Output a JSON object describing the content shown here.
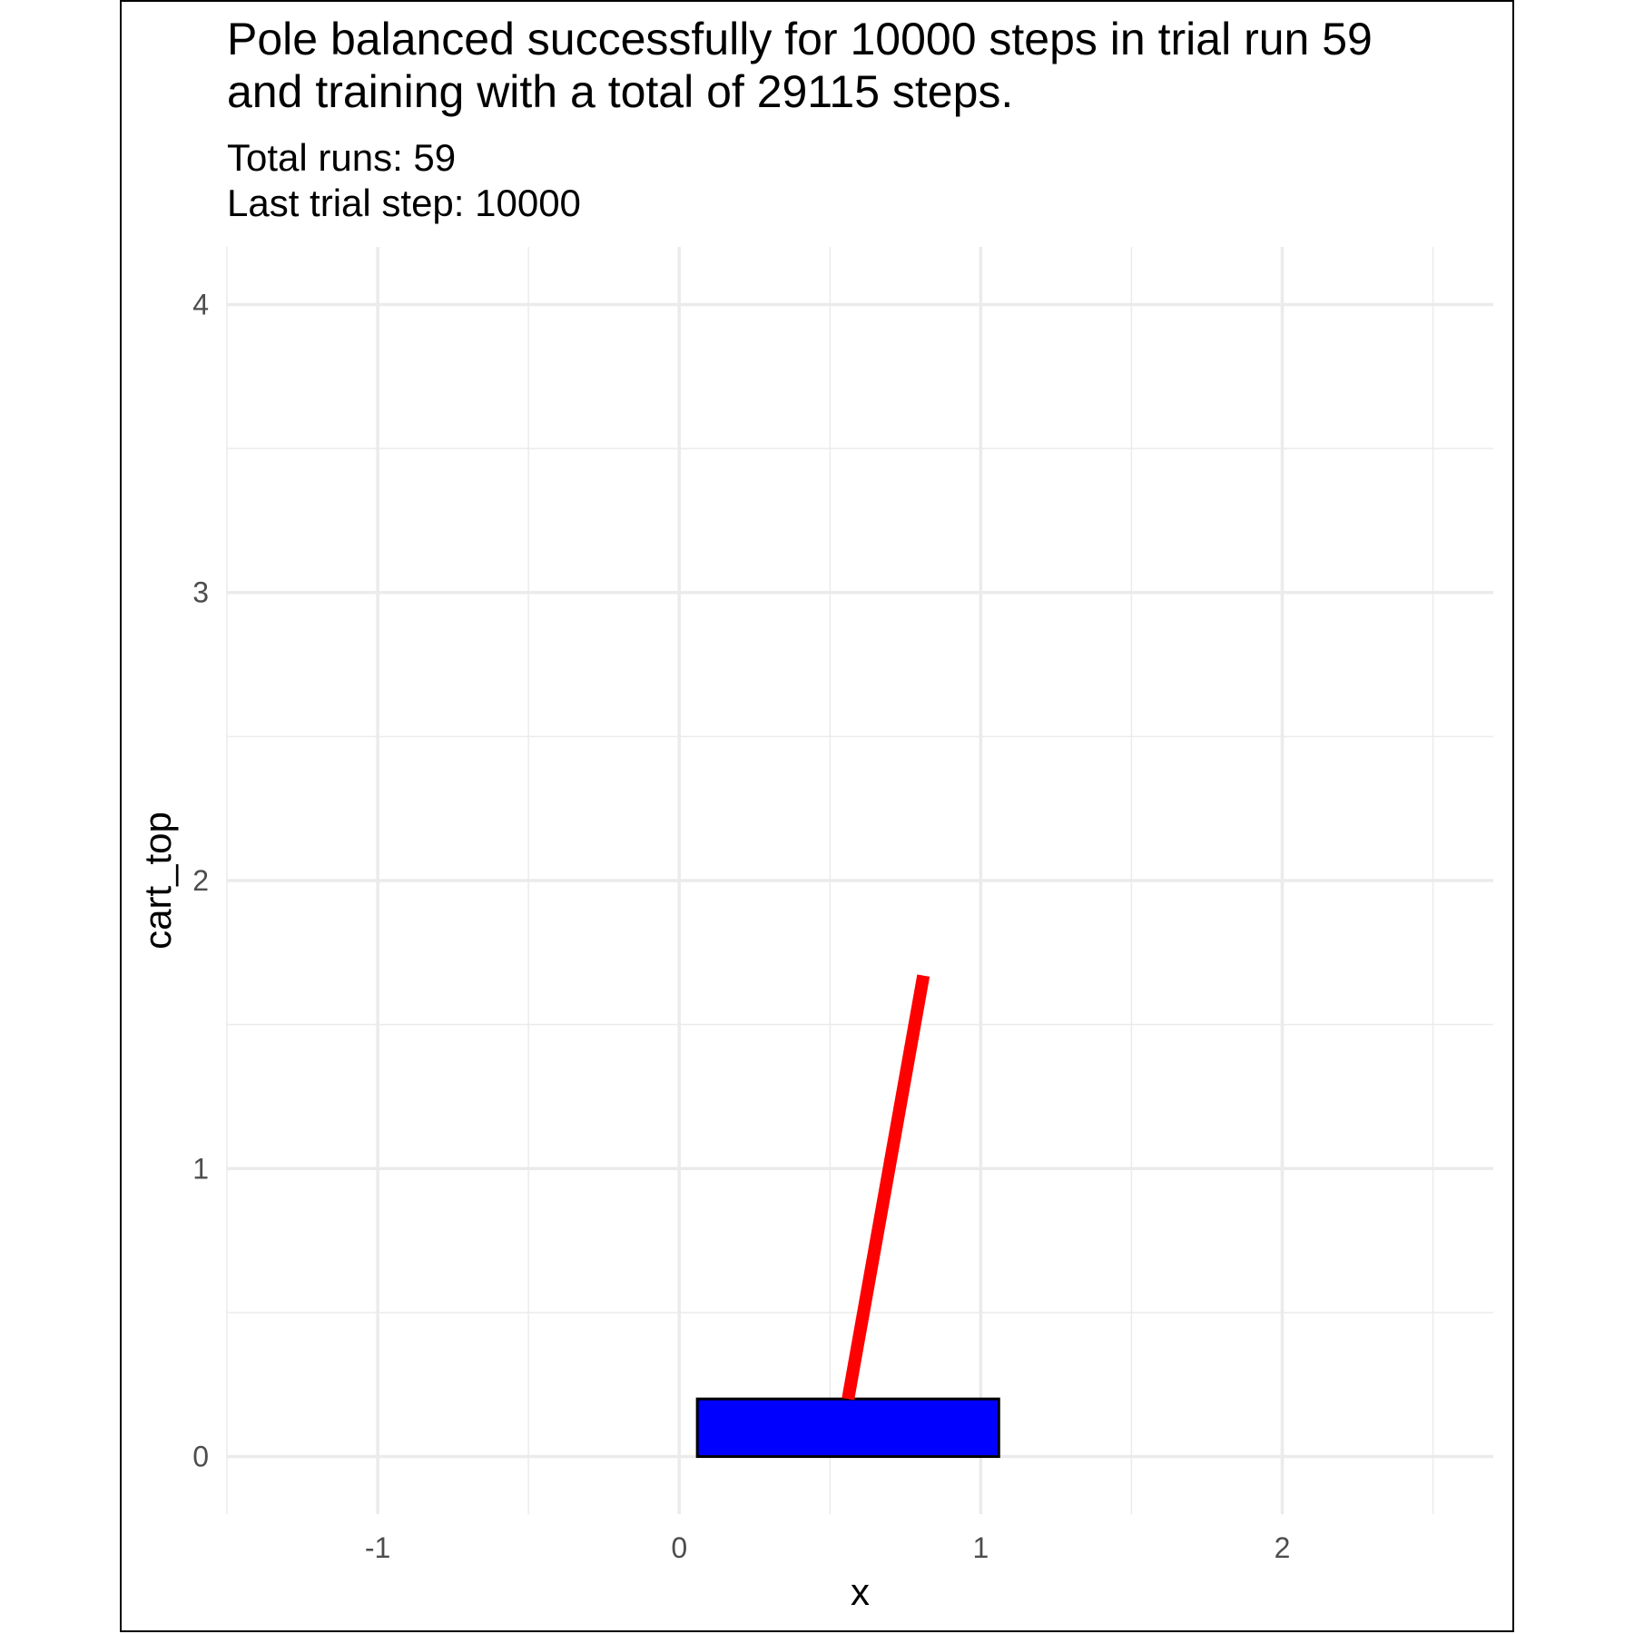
{
  "chart_data": {
    "type": "line",
    "title_lines": [
      "Pole balanced successfully for 10000 steps in trial run 59",
      "and training with a total of 29115 steps."
    ],
    "subtitle_lines": [
      "Total runs: 59",
      "Last trial step: 10000"
    ],
    "xlabel": "x",
    "ylabel": "cart_top",
    "xlim": [
      -1.5,
      2.7
    ],
    "ylim": [
      -0.2,
      4.2
    ],
    "x_ticks": [
      -1,
      0,
      1,
      2
    ],
    "x_tick_labels": [
      "-1",
      "0",
      "1",
      "2"
    ],
    "x_minor_ticks": [
      -1.5,
      -0.5,
      0.5,
      1.5,
      2.5
    ],
    "y_ticks": [
      0,
      1,
      2,
      3,
      4
    ],
    "y_tick_labels": [
      "0",
      "1",
      "2",
      "3",
      "4"
    ],
    "y_minor_ticks": [
      0.5,
      1.5,
      2.5,
      3.5
    ],
    "grid": true,
    "cart": {
      "xmin": 0.06,
      "xmax": 1.06,
      "ymin": 0,
      "ymax": 0.2,
      "fill": "#0000ff",
      "stroke": "#000000"
    },
    "pole": {
      "x": [
        0.56,
        0.81
      ],
      "y": [
        0.2,
        1.67
      ],
      "color": "#ff0000"
    }
  }
}
